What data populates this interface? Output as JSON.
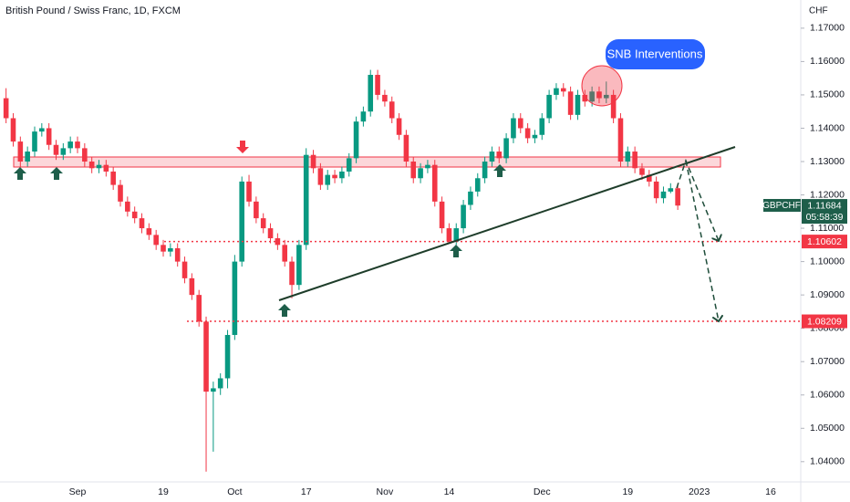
{
  "chart_data": {
    "type": "candlestick",
    "title": "British Pound / Swiss Franc, 1D, FXCM",
    "currency": "CHF",
    "symbol": "GBPCHF",
    "annotation": "SNB Interventions",
    "last_price": {
      "value": 1.11684,
      "label": "1.11684"
    },
    "countdown": "05:58:39",
    "levels": [
      {
        "value": 1.10602,
        "label": "1.10602"
      },
      {
        "value": 1.08209,
        "label": "1.08209"
      }
    ],
    "up_color": "#089981",
    "down_color": "#f23645",
    "categories": [
      null,
      null,
      null,
      null,
      null,
      null,
      null,
      null,
      null,
      null,
      "Sep",
      null,
      null,
      null,
      null,
      null,
      null,
      null,
      null,
      null,
      null,
      null,
      "19",
      null,
      null,
      null,
      null,
      null,
      null,
      null,
      null,
      null,
      "Oct",
      null,
      null,
      null,
      null,
      null,
      null,
      null,
      null,
      null,
      "17",
      null,
      null,
      null,
      null,
      null,
      null,
      null,
      null,
      null,
      null,
      "Nov",
      null,
      null,
      null,
      null,
      null,
      null,
      null,
      null,
      "14",
      null,
      null,
      null,
      null,
      null,
      null,
      null,
      null,
      null,
      null,
      null,
      null,
      "Dec",
      null,
      null,
      null,
      null,
      null,
      null,
      null,
      null,
      null,
      null,
      null,
      "19",
      null,
      null,
      null,
      null,
      null,
      null,
      null,
      null,
      null,
      "2023",
      null,
      null,
      null,
      null,
      null,
      null,
      null,
      null,
      null,
      "16",
      null,
      null,
      null,
      null,
      null,
      null,
      null,
      null,
      null,
      null
    ],
    "open": [
      1.149,
      1.143,
      1.136,
      1.13,
      1.133,
      1.139,
      1.14,
      1.135,
      1.132,
      1.134,
      1.136,
      1.134,
      1.13,
      1.128,
      1.129,
      1.127,
      1.123,
      1.118,
      1.115,
      1.113,
      1.11,
      1.108,
      1.105,
      1.103,
      1.104,
      1.1,
      1.095,
      1.09,
      1.082,
      1.061,
      1.062,
      1.065,
      1.078,
      1.1,
      1.124,
      1.118,
      1.113,
      1.11,
      1.107,
      1.105,
      1.1,
      1.093,
      1.105,
      1.132,
      1.128,
      1.123,
      1.126,
      1.125,
      1.127,
      1.131,
      1.142,
      1.145,
      1.156,
      1.15,
      1.148,
      1.143,
      1.138,
      1.13,
      1.125,
      1.128,
      1.129,
      1.118,
      1.11,
      1.106,
      1.11,
      1.117,
      1.121,
      1.125,
      1.13,
      1.133,
      1.131,
      1.137,
      1.143,
      1.14,
      1.137,
      1.138,
      1.143,
      1.15,
      1.152,
      1.151,
      1.144,
      1.15,
      1.148,
      1.151,
      1.149,
      1.15,
      1.143,
      1.13,
      1.133,
      1.128,
      1.126,
      1.124,
      1.119,
      1.121,
      1.122,
      null,
      null,
      null,
      null,
      null,
      null,
      null,
      null,
      null,
      null,
      null,
      null,
      null,
      null,
      null,
      null,
      null,
      null,
      null,
      null,
      null,
      null,
      null
    ],
    "high": [
      1.152,
      1.1445,
      1.1375,
      1.1345,
      1.1405,
      1.1415,
      1.1415,
      1.1365,
      1.1355,
      1.1375,
      1.1375,
      1.1355,
      1.1315,
      1.1305,
      1.1305,
      1.1285,
      1.1245,
      1.1195,
      1.1165,
      1.1145,
      1.1115,
      1.1095,
      1.1065,
      1.1055,
      1.1055,
      1.1015,
      1.0965,
      1.0915,
      1.0835,
      1.064,
      1.0665,
      1.0795,
      1.102,
      1.1255,
      1.126,
      1.1195,
      1.1145,
      1.1115,
      1.1085,
      1.1065,
      1.1015,
      1.1065,
      1.134,
      1.1335,
      1.1295,
      1.1275,
      1.1275,
      1.1285,
      1.1325,
      1.1435,
      1.1465,
      1.1575,
      1.1575,
      1.1515,
      1.1495,
      1.1445,
      1.1395,
      1.1315,
      1.1295,
      1.1305,
      1.1305,
      1.1195,
      1.1115,
      1.1115,
      1.1185,
      1.1225,
      1.1265,
      1.1315,
      1.1345,
      1.1345,
      1.1385,
      1.1445,
      1.1445,
      1.1415,
      1.1395,
      1.1445,
      1.1515,
      1.1535,
      1.1535,
      1.1525,
      1.1515,
      1.1515,
      1.1525,
      1.1525,
      1.154,
      1.1515,
      1.1445,
      1.1345,
      1.1345,
      1.1295,
      1.1275,
      1.1255,
      1.1225,
      1.1235,
      1.1235,
      null,
      null,
      null,
      null,
      null,
      null,
      null,
      null,
      null,
      null,
      null,
      null,
      null,
      null,
      null,
      null,
      null,
      null,
      null,
      null,
      null,
      null,
      null
    ],
    "low": [
      1.1415,
      1.1345,
      1.1285,
      1.1285,
      1.1315,
      1.1375,
      1.1335,
      1.1305,
      1.1305,
      1.1325,
      1.1325,
      1.1285,
      1.1265,
      1.1265,
      1.1255,
      1.1215,
      1.1165,
      1.1135,
      1.1115,
      1.1085,
      1.1065,
      1.1035,
      1.1015,
      1.1015,
      1.0985,
      1.0935,
      1.0885,
      1.0805,
      1.037,
      1.043,
      1.06,
      1.062,
      1.0765,
      1.0985,
      1.1165,
      1.1115,
      1.1085,
      1.1055,
      1.1035,
      1.0985,
      1.089,
      1.0915,
      1.1035,
      1.1265,
      1.1215,
      1.1215,
      1.1235,
      1.1235,
      1.1255,
      1.1295,
      1.1405,
      1.1435,
      1.1485,
      1.1465,
      1.1415,
      1.1365,
      1.1285,
      1.1235,
      1.1235,
      1.1265,
      1.1165,
      1.1085,
      1.1055,
      1.105,
      1.1085,
      1.1155,
      1.1195,
      1.1235,
      1.1285,
      1.1295,
      1.1295,
      1.1355,
      1.1385,
      1.1355,
      1.1355,
      1.1365,
      1.1415,
      1.1485,
      1.1495,
      1.1425,
      1.1425,
      1.1465,
      1.1465,
      1.1475,
      1.1475,
      1.1415,
      1.1285,
      1.1285,
      1.1265,
      1.1245,
      1.1225,
      1.1175,
      1.1175,
      1.1205,
      1.1155,
      null,
      null,
      null,
      null,
      null,
      null,
      null,
      null,
      null,
      null,
      null,
      null,
      null,
      null,
      null,
      null,
      null,
      null,
      null,
      null,
      null,
      null,
      null
    ],
    "close": [
      1.143,
      1.136,
      1.13,
      1.133,
      1.139,
      1.14,
      1.135,
      1.132,
      1.134,
      1.136,
      1.134,
      1.13,
      1.128,
      1.129,
      1.127,
      1.123,
      1.118,
      1.115,
      1.113,
      1.11,
      1.108,
      1.105,
      1.103,
      1.104,
      1.1,
      1.095,
      1.09,
      1.082,
      1.061,
      1.062,
      1.065,
      1.078,
      1.1,
      1.124,
      1.118,
      1.113,
      1.11,
      1.107,
      1.105,
      1.1,
      1.093,
      1.105,
      1.132,
      1.128,
      1.123,
      1.126,
      1.125,
      1.127,
      1.131,
      1.142,
      1.145,
      1.156,
      1.15,
      1.148,
      1.143,
      1.138,
      1.13,
      1.125,
      1.128,
      1.129,
      1.118,
      1.11,
      1.106,
      1.11,
      1.117,
      1.121,
      1.125,
      1.13,
      1.133,
      1.131,
      1.137,
      1.143,
      1.14,
      1.137,
      1.138,
      1.143,
      1.15,
      1.152,
      1.151,
      1.144,
      1.15,
      1.148,
      1.151,
      1.149,
      1.15,
      1.143,
      1.13,
      1.133,
      1.128,
      1.126,
      1.124,
      1.119,
      1.121,
      1.122,
      1.1168,
      null,
      null,
      null,
      null,
      null,
      null,
      null,
      null,
      null,
      null,
      null,
      null,
      null,
      null,
      null,
      null,
      null,
      null,
      null,
      null,
      null,
      null,
      null
    ],
    "ylim": [
      1.03502,
      1.17407
    ],
    "yticks": [
      {
        "value": 1.04,
        "label": "1.04000"
      },
      {
        "value": 1.05,
        "label": "1.05000"
      },
      {
        "value": 1.06,
        "label": "1.06000"
      },
      {
        "value": 1.07,
        "label": "1.07000"
      },
      {
        "value": 1.08,
        "label": "1.08000"
      },
      {
        "value": 1.09,
        "label": "1.09000"
      },
      {
        "value": 1.1,
        "label": "1.10000"
      },
      {
        "value": 1.11,
        "label": "1.11000"
      },
      {
        "value": 1.12,
        "label": "1.12000"
      },
      {
        "value": 1.13,
        "label": "1.13000"
      },
      {
        "value": 1.14,
        "label": "1.14000"
      },
      {
        "value": 1.15,
        "label": "1.15000"
      },
      {
        "value": 1.16,
        "label": "1.16000"
      },
      {
        "value": 1.17,
        "label": "1.17000"
      }
    ]
  }
}
